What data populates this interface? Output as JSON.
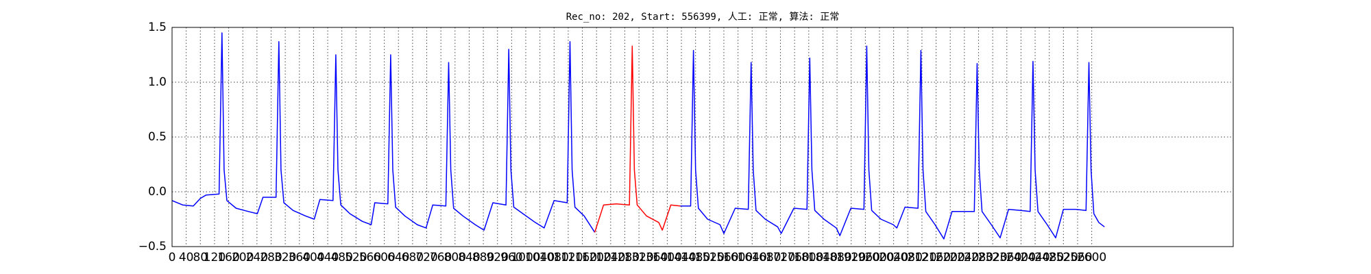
{
  "chart_data": {
    "type": "line",
    "title": "Rec_no: 202, Start: 556399, 人工: 正常, 算法: 正常",
    "xlim": [
      0,
      3000
    ],
    "ylim": [
      -0.5,
      1.5
    ],
    "xticks": [
      0,
      40,
      80,
      120,
      160,
      200,
      240,
      280,
      320,
      360,
      400,
      440,
      480,
      520,
      560,
      600,
      640,
      680,
      720,
      760,
      800,
      840,
      880,
      920,
      960,
      1000,
      1040,
      1080,
      1120,
      1160,
      1200,
      1240,
      1280,
      1320,
      1360,
      1400,
      1440,
      1480,
      1520,
      1560,
      1600,
      1640,
      1680,
      1720,
      1760,
      1800,
      1840,
      1880,
      1920,
      1960,
      2000,
      2040,
      2080,
      2120,
      2160,
      2200,
      2240,
      2280,
      2320,
      2360,
      2400,
      2440,
      2480,
      2520,
      2560,
      2600
    ],
    "yticks": [
      {
        "value": -0.5,
        "label": "−0.5"
      },
      {
        "value": 0,
        "label": "0.0"
      },
      0.5,
      {
        "value": 1,
        "label": "1.0"
      },
      1.5
    ],
    "grid": true,
    "series": [
      {
        "color": "#0000ff",
        "x": [
          0,
          30,
          60,
          80,
          96,
          133,
          141,
          147,
          155,
          181,
          216,
          241,
          257,
          294,
          302,
          308,
          316,
          342,
          377,
          402,
          418,
          455,
          463,
          469,
          477,
          503,
          538,
          563,
          573,
          610,
          618,
          624,
          632,
          658,
          693,
          718,
          737,
          774,
          782,
          788,
          796,
          822,
          857,
          882,
          907,
          944,
          952,
          958,
          966,
          992,
          1027,
          1052,
          1080,
          1117,
          1125,
          1131,
          1139,
          1165,
          1195
        ],
        "values": [
          -0.08,
          -0.12,
          -0.13,
          -0.06,
          -0.03,
          -0.02,
          1.45,
          0.2,
          -0.08,
          -0.15,
          -0.18,
          -0.2,
          -0.05,
          -0.05,
          1.37,
          0.2,
          -0.1,
          -0.17,
          -0.22,
          -0.25,
          -0.07,
          -0.08,
          1.25,
          0.2,
          -0.12,
          -0.2,
          -0.27,
          -0.3,
          -0.1,
          -0.11,
          1.25,
          0.2,
          -0.14,
          -0.22,
          -0.3,
          -0.33,
          -0.12,
          -0.13,
          1.18,
          0.2,
          -0.15,
          -0.22,
          -0.3,
          -0.35,
          -0.1,
          -0.12,
          1.3,
          0.2,
          -0.14,
          -0.2,
          -0.28,
          -0.33,
          -0.08,
          -0.1,
          1.37,
          0.2,
          -0.14,
          -0.22,
          -0.37
        ]
      },
      {
        "color": "#ff0000",
        "x": [
          1195,
          1220,
          1256,
          1293,
          1301,
          1307,
          1315,
          1341,
          1376,
          1386,
          1410,
          1437
        ],
        "values": [
          -0.37,
          -0.12,
          -0.11,
          -0.12,
          1.33,
          0.2,
          -0.12,
          -0.22,
          -0.28,
          -0.35,
          -0.12,
          -0.13
        ]
      },
      {
        "color": "#0000ff",
        "x": [
          1437,
          1466,
          1474,
          1480,
          1488,
          1514,
          1549,
          1560,
          1592,
          1629,
          1637,
          1643,
          1651,
          1677,
          1712,
          1722,
          1758,
          1795,
          1803,
          1809,
          1817,
          1843,
          1878,
          1888,
          1919,
          1956,
          1964,
          1970,
          1978,
          2004,
          2039,
          2049,
          2072,
          2109,
          2117,
          2123,
          2131,
          2157,
          2182,
          2205,
          2240,
          2268,
          2276,
          2282,
          2290,
          2316,
          2341,
          2365,
          2400,
          2426,
          2434,
          2440,
          2448,
          2474,
          2498,
          2520,
          2555,
          2584,
          2592,
          2598,
          2606,
          2620,
          2636
        ],
        "values": [
          -0.13,
          -0.13,
          1.29,
          0.2,
          -0.15,
          -0.25,
          -0.3,
          -0.38,
          -0.15,
          -0.16,
          1.18,
          0.2,
          -0.17,
          -0.25,
          -0.32,
          -0.38,
          -0.15,
          -0.16,
          1.22,
          0.2,
          -0.17,
          -0.25,
          -0.33,
          -0.4,
          -0.15,
          -0.16,
          1.33,
          0.2,
          -0.17,
          -0.25,
          -0.3,
          -0.33,
          -0.14,
          -0.15,
          1.29,
          0.2,
          -0.18,
          -0.3,
          -0.43,
          -0.18,
          -0.18,
          -0.18,
          1.17,
          0.2,
          -0.18,
          -0.3,
          -0.42,
          -0.16,
          -0.17,
          -0.18,
          1.19,
          0.2,
          -0.18,
          -0.3,
          -0.42,
          -0.16,
          -0.16,
          -0.17,
          1.18,
          0.2,
          -0.2,
          -0.28,
          -0.32
        ]
      }
    ]
  }
}
